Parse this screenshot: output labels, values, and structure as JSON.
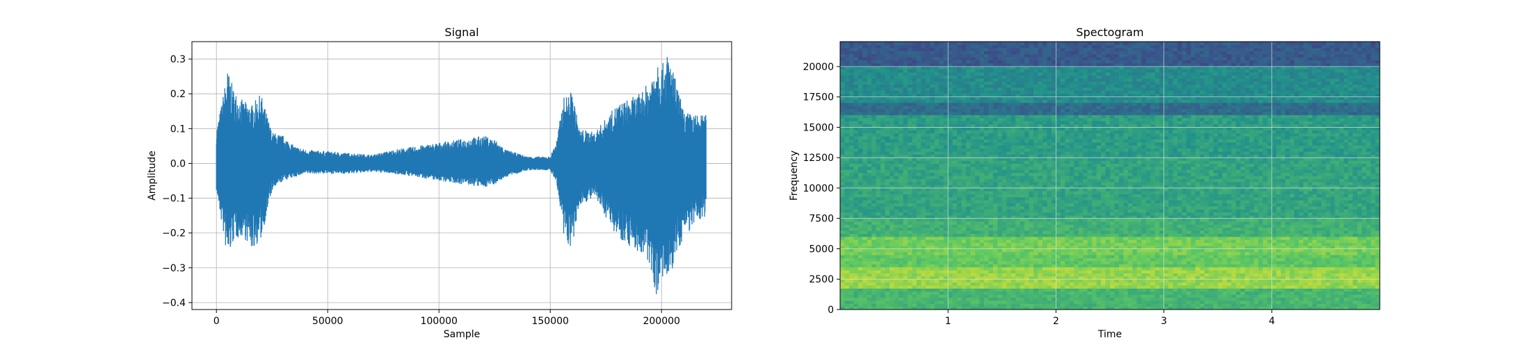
{
  "chart_data": [
    {
      "type": "line",
      "title": "Signal",
      "xlabel": "Sample",
      "ylabel": "Amplitude",
      "xlim": [
        -11000,
        231500
      ],
      "ylim": [
        -0.42,
        0.35
      ],
      "x_ticks": [
        0,
        50000,
        100000,
        150000,
        200000
      ],
      "y_ticks": [
        -0.4,
        -0.3,
        -0.2,
        -0.1,
        0.0,
        0.1,
        0.2,
        0.3
      ],
      "x_tick_labels": [
        "0",
        "50000",
        "100000",
        "150000",
        "200000"
      ],
      "y_tick_labels": [
        "−0.4",
        "−0.3",
        "−0.2",
        "−0.1",
        "0.0",
        "0.1",
        "0.2",
        "0.3"
      ],
      "grid": true,
      "color": "#1f77b4",
      "series": [
        {
          "x": [
            0,
            2000,
            5000,
            8000,
            12000,
            16000,
            20000,
            25000,
            30000,
            35000,
            40000,
            50000,
            60000,
            70000,
            80000,
            90000,
            100000,
            110000,
            120000,
            125000,
            130000,
            140000,
            150000,
            153000,
            156000,
            160000,
            163000,
            170000,
            180000,
            190000,
            195000,
            198000,
            200000,
            203000,
            206000,
            210000,
            215000,
            220000
          ],
          "upper": [
            0.1,
            0.16,
            0.27,
            0.21,
            0.18,
            0.17,
            0.2,
            0.09,
            0.08,
            0.05,
            0.04,
            0.035,
            0.03,
            0.025,
            0.04,
            0.05,
            0.06,
            0.07,
            0.08,
            0.07,
            0.04,
            0.02,
            0.02,
            0.07,
            0.19,
            0.21,
            0.1,
            0.09,
            0.17,
            0.2,
            0.24,
            0.32,
            0.28,
            0.32,
            0.25,
            0.15,
            0.14,
            0.14
          ],
          "lower": [
            -0.08,
            -0.16,
            -0.28,
            -0.22,
            -0.21,
            -0.25,
            -0.22,
            -0.08,
            -0.05,
            -0.04,
            -0.03,
            -0.03,
            -0.03,
            -0.025,
            -0.03,
            -0.04,
            -0.05,
            -0.06,
            -0.07,
            -0.06,
            -0.04,
            -0.02,
            -0.02,
            -0.06,
            -0.22,
            -0.25,
            -0.12,
            -0.1,
            -0.21,
            -0.26,
            -0.3,
            -0.39,
            -0.33,
            -0.36,
            -0.28,
            -0.21,
            -0.18,
            -0.15
          ]
        }
      ]
    },
    {
      "type": "heatmap",
      "title": "Spectogram",
      "xlabel": "Time",
      "ylabel": "Frequency",
      "xlim": [
        0,
        5.0
      ],
      "ylim": [
        0,
        22050
      ],
      "x_ticks": [
        1,
        2,
        3,
        4
      ],
      "y_ticks": [
        0,
        2500,
        5000,
        7500,
        10000,
        12500,
        15000,
        17500,
        20000
      ],
      "x_tick_labels": [
        "1",
        "2",
        "3",
        "4"
      ],
      "y_tick_labels": [
        "0",
        "2500",
        "5000",
        "7500",
        "10000",
        "12500",
        "15000",
        "17500",
        "20000"
      ],
      "grid": true,
      "colormap": "viridis",
      "bands": [
        {
          "range": [
            20000,
            22050
          ],
          "level": 0.28
        },
        {
          "range": [
            17000,
            20000
          ],
          "level": 0.48
        },
        {
          "range": [
            16000,
            17000
          ],
          "level": 0.35
        },
        {
          "range": [
            12500,
            16000
          ],
          "level": 0.55
        },
        {
          "range": [
            7500,
            12500
          ],
          "level": 0.58
        },
        {
          "range": [
            6000,
            7500
          ],
          "level": 0.64
        },
        {
          "range": [
            4500,
            6000
          ],
          "level": 0.78
        },
        {
          "range": [
            3500,
            4500
          ],
          "level": 0.74
        },
        {
          "range": [
            1800,
            3500
          ],
          "level": 0.84
        },
        {
          "range": [
            0,
            1800
          ],
          "level": 0.66
        }
      ]
    }
  ]
}
